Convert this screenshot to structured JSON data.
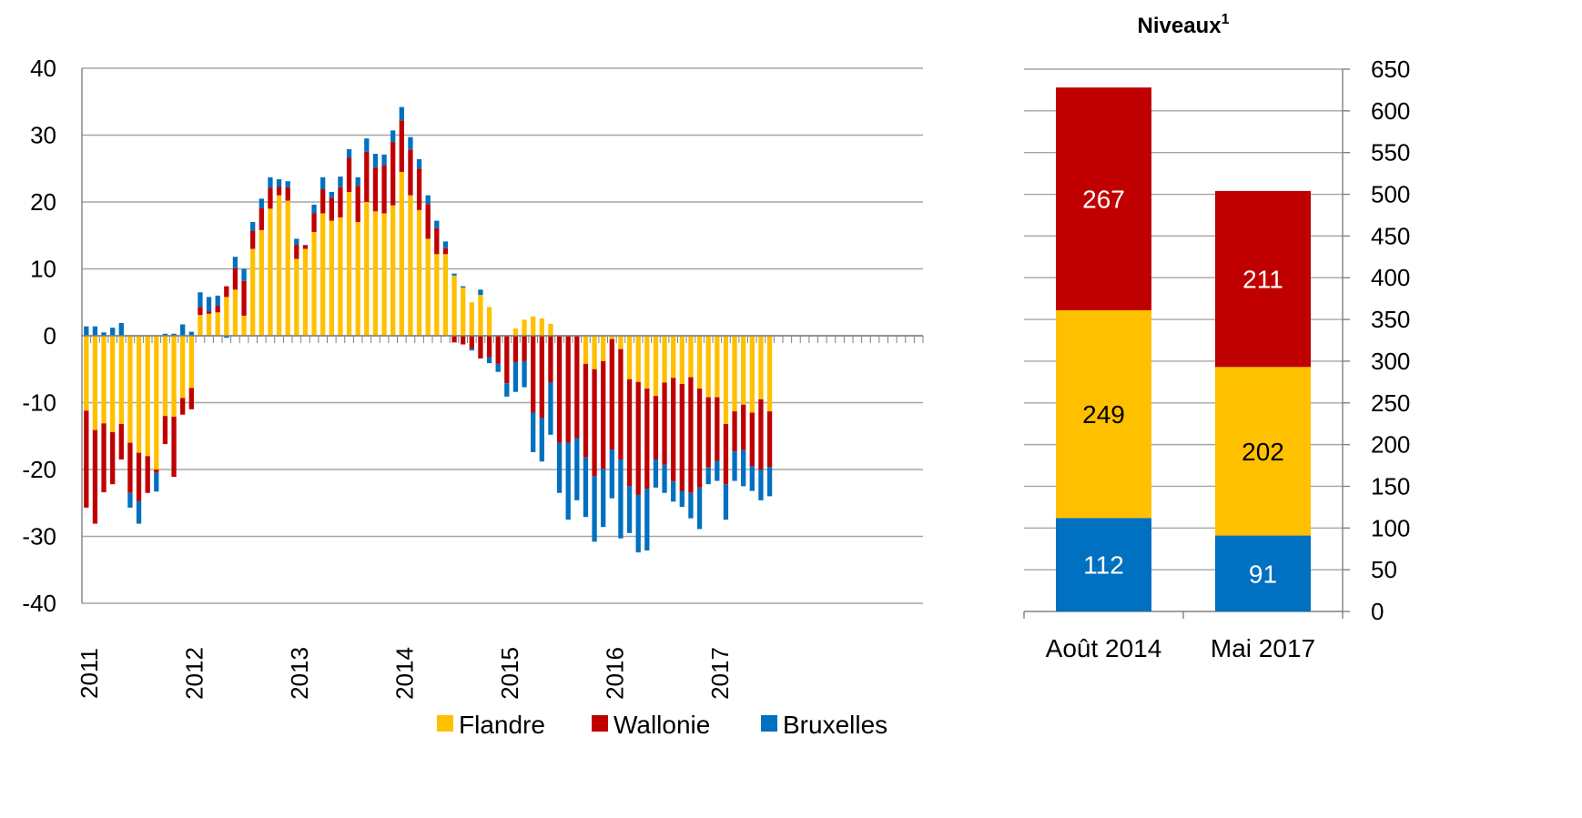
{
  "colors": {
    "flandre": "#FFC000",
    "wallonie": "#C00000",
    "bruxelles": "#0070C0",
    "grid": "#A6A6A6",
    "axis": "#808080"
  },
  "legend": [
    "Flandre",
    "Wallonie",
    "Bruxelles"
  ],
  "chart_data": [
    {
      "type": "bar",
      "stacked": true,
      "title": "",
      "xlabel": "",
      "ylabel": "",
      "ylim": [
        -40,
        40
      ],
      "y_ticks": [
        -40,
        -30,
        -20,
        -10,
        0,
        10,
        20,
        30,
        40
      ],
      "x_year_labels": [
        "2011",
        "2012",
        "2013",
        "2014",
        "2015",
        "2016",
        "2017"
      ],
      "months_per_year": 12,
      "total_periods": 96,
      "grid": true,
      "legend_position": "bottom",
      "series": [
        {
          "name": "Flandre",
          "values": [
            -11.2,
            -14.1,
            -13.1,
            -14.4,
            -13.2,
            -16.0,
            -17.5,
            -18.0,
            -20.0,
            -12.0,
            -12.1,
            -9.3,
            -7.8,
            3.1,
            3.3,
            3.5,
            5.8,
            6.9,
            3.0,
            13.0,
            15.8,
            19.0,
            21.0,
            20.2,
            11.5,
            13.0,
            15.5,
            18.3,
            17.2,
            17.7,
            21.5,
            17.0,
            20.0,
            18.6,
            18.3,
            19.5,
            24.5,
            21.0,
            18.8,
            14.5,
            12.2,
            12.2,
            9.0,
            7.2,
            5.0,
            6.1,
            4.3,
            0.0,
            0.0,
            1.1,
            2.4,
            2.9,
            2.6,
            1.8,
            0.0,
            0.0,
            0.0,
            -4.2,
            -5.0,
            -3.8,
            -0.5,
            -2.0,
            -6.5,
            -6.9,
            -7.9,
            -9.0,
            -7.0,
            -6.3,
            -7.2,
            -6.2,
            -7.9,
            -9.2,
            -9.2,
            -13.2,
            -11.3,
            -10.3,
            -11.5,
            -9.5,
            -11.3
          ],
          "bar_colors_note": ""
        },
        {
          "name": "Wallonie",
          "values": [
            -14.5,
            -14.0,
            -10.3,
            -7.8,
            -5.3,
            -7.5,
            -7.2,
            -5.5,
            -0.5,
            -4.2,
            -9.0,
            -2.5,
            -3.2,
            1.2,
            0.3,
            1.0,
            1.6,
            3.2,
            5.2,
            2.7,
            3.3,
            3.1,
            1.3,
            2.0,
            2.1,
            0.5,
            2.8,
            3.6,
            3.4,
            4.5,
            5.1,
            5.4,
            7.5,
            6.6,
            7.2,
            9.5,
            7.7,
            6.8,
            6.2,
            5.2,
            3.9,
            0.9,
            -1.0,
            -1.3,
            -1.9,
            -3.4,
            -3.2,
            -4.2,
            -7.1,
            -4.0,
            -3.8,
            -11.5,
            -12.3,
            -7.0,
            -16.0,
            -16.0,
            -15.3,
            -14.0,
            -16.0,
            -16.1,
            -16.5,
            -16.5,
            -16.0,
            -16.9,
            -15.0,
            -9.5,
            -12.3,
            -15.5,
            -16.0,
            -17.3,
            -14.8,
            -10.5,
            -9.5,
            -9.0,
            -6.0,
            -6.8,
            -8.0,
            -10.5,
            -8.3
          ]
        },
        {
          "name": "Bruxelles",
          "values": [
            1.4,
            1.4,
            0.5,
            1.2,
            1.9,
            -2.2,
            -3.4,
            0.0,
            -2.8,
            0.3,
            0.3,
            1.7,
            0.6,
            2.2,
            2.2,
            1.5,
            -0.3,
            1.7,
            1.8,
            1.3,
            1.4,
            1.6,
            1.1,
            0.9,
            0.9,
            0.1,
            1.3,
            1.8,
            0.9,
            1.6,
            1.3,
            1.3,
            2.0,
            2.0,
            1.6,
            1.7,
            2.0,
            1.9,
            1.4,
            1.3,
            1.1,
            1.0,
            0.3,
            0.2,
            -0.3,
            0.8,
            -0.9,
            -1.2,
            -2.0,
            -4.4,
            -3.9,
            -5.9,
            -6.5,
            -7.8,
            -7.5,
            -11.5,
            -9.3,
            -8.9,
            -9.8,
            -8.7,
            -7.3,
            -11.8,
            -7.0,
            -8.6,
            -9.2,
            -4.2,
            -4.2,
            -3.0,
            -2.4,
            -3.8,
            -6.2,
            -2.5,
            -3.0,
            -5.3,
            -4.4,
            -5.4,
            -3.7,
            -4.6,
            -4.4
          ]
        }
      ]
    },
    {
      "type": "bar",
      "stacked": true,
      "title": "Niveaux",
      "title_superscript": "1",
      "categories": [
        "Août 2014",
        "Mai 2017"
      ],
      "ylim": [
        0,
        650
      ],
      "y_ticks": [
        0,
        50,
        100,
        150,
        200,
        250,
        300,
        350,
        400,
        450,
        500,
        550,
        600,
        650
      ],
      "y_axis_side": "right",
      "grid": true,
      "series": [
        {
          "name": "Bruxelles",
          "values": [
            112,
            91
          ]
        },
        {
          "name": "Flandre",
          "values": [
            249,
            202
          ]
        },
        {
          "name": "Wallonie",
          "values": [
            267,
            211
          ]
        }
      ]
    }
  ]
}
